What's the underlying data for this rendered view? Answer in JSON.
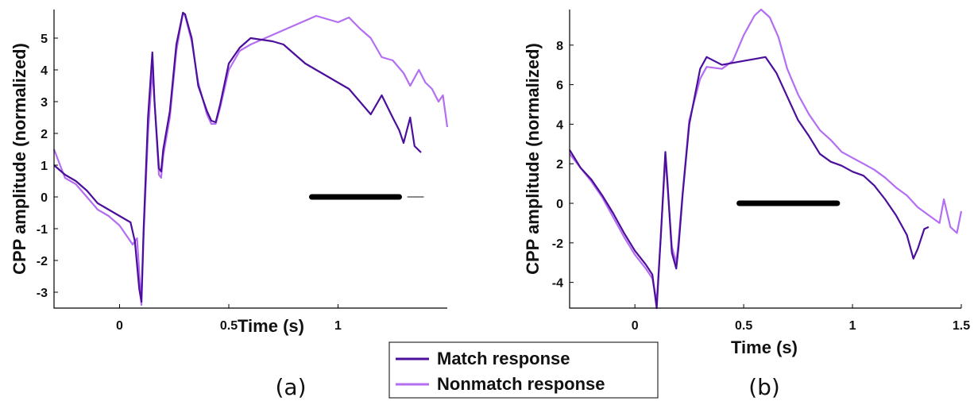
{
  "colors": {
    "match": "#4b0f9c",
    "nonmatch": "#b46ef2",
    "sig_main": "#000000",
    "sig_faint": "#8a8a8a",
    "axis": "#000000"
  },
  "legend": {
    "match_label": "Match response",
    "nonmatch_label": "Nonmatch response"
  },
  "chart_data": [
    {
      "type": "line",
      "panel_label": "(a)",
      "xlabel": "Time (s)",
      "ylabel": "CPP amplitude (normalized)",
      "xlim": [
        -0.3,
        1.5
      ],
      "ylim": [
        -3.5,
        5.9
      ],
      "xticks": [
        {
          "value": 0,
          "label": "0"
        },
        {
          "value": 0.5,
          "label": "0.5"
        },
        {
          "value": 1,
          "label": "1"
        }
      ],
      "yticks": [
        {
          "value": -3,
          "label": "-3"
        },
        {
          "value": -2,
          "label": "-2"
        },
        {
          "value": -1,
          "label": "-1"
        },
        {
          "value": 0,
          "label": "0"
        },
        {
          "value": 1,
          "label": "1"
        },
        {
          "value": 2,
          "label": "2"
        },
        {
          "value": 3,
          "label": "3"
        },
        {
          "value": 4,
          "label": "4"
        },
        {
          "value": 5,
          "label": "5"
        }
      ],
      "significance": [
        {
          "x": [
            0.88,
            1.28
          ],
          "y": 0,
          "style": "main"
        },
        {
          "x": [
            1.32,
            1.39
          ],
          "y": 0,
          "style": "faint"
        }
      ],
      "series": [
        {
          "name": "Match response",
          "x": [
            -0.3,
            -0.25,
            -0.2,
            -0.15,
            -0.1,
            -0.05,
            0.0,
            0.05,
            0.07,
            0.09,
            0.1,
            0.11,
            0.13,
            0.15,
            0.16,
            0.18,
            0.19,
            0.2,
            0.23,
            0.26,
            0.29,
            0.3,
            0.33,
            0.36,
            0.4,
            0.42,
            0.44,
            0.46,
            0.5,
            0.55,
            0.6,
            0.65,
            0.7,
            0.75,
            0.8,
            0.85,
            0.9,
            0.95,
            1.0,
            1.05,
            1.1,
            1.15,
            1.2,
            1.25,
            1.28,
            1.3,
            1.33,
            1.35,
            1.38
          ],
          "y": [
            1.0,
            0.7,
            0.5,
            0.2,
            -0.2,
            -0.4,
            -0.6,
            -0.8,
            -1.4,
            -2.9,
            -3.3,
            -1.0,
            2.5,
            4.55,
            3.0,
            0.9,
            0.8,
            1.5,
            2.7,
            4.8,
            5.8,
            5.75,
            5.0,
            3.5,
            2.7,
            2.4,
            2.35,
            2.9,
            4.2,
            4.7,
            5.0,
            4.95,
            4.9,
            4.8,
            4.5,
            4.2,
            4.0,
            3.8,
            3.6,
            3.4,
            3.0,
            2.6,
            3.2,
            2.5,
            2.1,
            1.7,
            2.5,
            1.6,
            1.4
          ]
        },
        {
          "name": "Nonmatch response",
          "x": [
            -0.3,
            -0.25,
            -0.2,
            -0.15,
            -0.1,
            -0.05,
            0.0,
            0.03,
            0.06,
            0.08,
            0.1,
            0.11,
            0.13,
            0.15,
            0.16,
            0.18,
            0.19,
            0.2,
            0.23,
            0.26,
            0.29,
            0.3,
            0.33,
            0.36,
            0.4,
            0.42,
            0.44,
            0.46,
            0.5,
            0.55,
            0.6,
            0.7,
            0.8,
            0.9,
            0.95,
            1.0,
            1.05,
            1.1,
            1.15,
            1.2,
            1.25,
            1.3,
            1.33,
            1.37,
            1.4,
            1.43,
            1.46,
            1.48,
            1.5
          ],
          "y": [
            1.5,
            0.6,
            0.4,
            0.0,
            -0.4,
            -0.6,
            -0.9,
            -1.2,
            -1.5,
            -1.3,
            -3.4,
            -1.2,
            2.0,
            4.0,
            3.0,
            0.7,
            0.6,
            1.3,
            2.5,
            4.6,
            5.8,
            5.7,
            4.9,
            3.6,
            2.6,
            2.3,
            2.3,
            2.8,
            4.0,
            4.6,
            4.8,
            5.1,
            5.4,
            5.7,
            5.6,
            5.5,
            5.65,
            5.3,
            5.0,
            4.4,
            4.3,
            3.9,
            3.5,
            4.0,
            3.6,
            3.4,
            3.0,
            3.2,
            2.2
          ]
        }
      ]
    },
    {
      "type": "line",
      "panel_label": "(b)",
      "xlabel": "Time (s)",
      "ylabel": "CPP amplitude (normalized)",
      "xlim": [
        -0.3,
        1.5
      ],
      "ylim": [
        -5.3,
        9.8
      ],
      "xticks": [
        {
          "value": 0,
          "label": "0"
        },
        {
          "value": 0.5,
          "label": "0.5"
        },
        {
          "value": 1,
          "label": "1"
        },
        {
          "value": 1.5,
          "label": "1.5"
        }
      ],
      "yticks": [
        {
          "value": -4,
          "label": "-4"
        },
        {
          "value": -2,
          "label": "-2"
        },
        {
          "value": 0,
          "label": "0"
        },
        {
          "value": 2,
          "label": "2"
        },
        {
          "value": 4,
          "label": "4"
        },
        {
          "value": 6,
          "label": "6"
        },
        {
          "value": 8,
          "label": "8"
        }
      ],
      "significance": [
        {
          "x": [
            0.48,
            0.93
          ],
          "y": 0,
          "style": "main"
        }
      ],
      "series": [
        {
          "name": "Match response",
          "x": [
            -0.3,
            -0.25,
            -0.2,
            -0.15,
            -0.1,
            -0.05,
            0.0,
            0.05,
            0.08,
            0.1,
            0.12,
            0.14,
            0.15,
            0.17,
            0.19,
            0.2,
            0.22,
            0.25,
            0.3,
            0.33,
            0.4,
            0.45,
            0.5,
            0.55,
            0.6,
            0.65,
            0.7,
            0.75,
            0.8,
            0.85,
            0.9,
            0.95,
            1.0,
            1.05,
            1.1,
            1.15,
            1.2,
            1.25,
            1.28,
            1.3,
            1.33,
            1.35
          ],
          "y": [
            2.7,
            1.8,
            1.2,
            0.4,
            -0.5,
            -1.5,
            -2.4,
            -3.1,
            -3.6,
            -5.3,
            -1.5,
            2.6,
            1.0,
            -2.5,
            -3.3,
            -2.3,
            0.5,
            4.0,
            6.8,
            7.4,
            7.0,
            7.1,
            7.2,
            7.3,
            7.4,
            6.6,
            5.4,
            4.2,
            3.4,
            2.5,
            2.1,
            1.9,
            1.6,
            1.4,
            0.9,
            0.2,
            -0.6,
            -1.6,
            -2.8,
            -2.3,
            -1.3,
            -1.2
          ]
        },
        {
          "name": "Nonmatch response",
          "x": [
            -0.3,
            -0.25,
            -0.2,
            -0.15,
            -0.1,
            -0.05,
            0.0,
            0.05,
            0.08,
            0.1,
            0.12,
            0.14,
            0.15,
            0.17,
            0.19,
            0.2,
            0.22,
            0.25,
            0.3,
            0.33,
            0.4,
            0.45,
            0.5,
            0.55,
            0.58,
            0.62,
            0.66,
            0.7,
            0.75,
            0.8,
            0.85,
            0.9,
            0.95,
            1.0,
            1.05,
            1.1,
            1.15,
            1.2,
            1.25,
            1.3,
            1.35,
            1.4,
            1.42,
            1.45,
            1.48,
            1.5
          ],
          "y": [
            2.5,
            1.8,
            1.1,
            0.3,
            -0.7,
            -1.7,
            -2.6,
            -3.3,
            -3.8,
            -5.0,
            -1.5,
            2.3,
            0.8,
            -2.2,
            -3.0,
            -2.0,
            0.6,
            4.2,
            6.3,
            6.9,
            6.8,
            7.2,
            8.5,
            9.5,
            9.8,
            9.4,
            8.4,
            6.8,
            5.5,
            4.5,
            3.7,
            3.2,
            2.6,
            2.3,
            2.0,
            1.7,
            1.3,
            0.8,
            0.4,
            -0.2,
            -0.6,
            -1.0,
            0.2,
            -1.2,
            -1.5,
            -0.4
          ]
        }
      ]
    }
  ]
}
